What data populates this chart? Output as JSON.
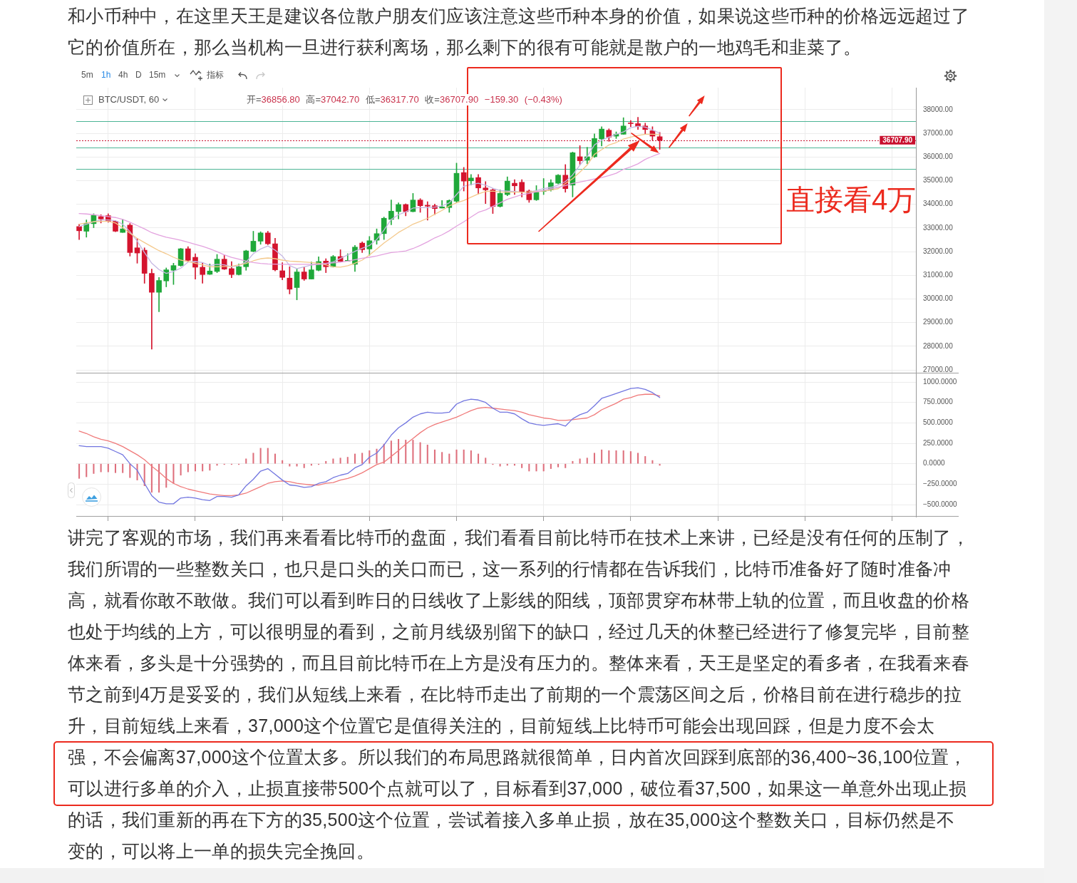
{
  "chart_data": [
    {
      "type": "other",
      "annotations": [
        "和小币种中，在这里天王是建议各位散户朋友们应该注意这些币种本身的价值，如果说这些币种的价格远远超过了",
        "它的价值所在，那么当机构一旦进行获利离场，那么剩下的很有可能就是散户的一地鸡毛和韭菜了。"
      ]
    },
    {
      "type": "candlestick",
      "title": "BTC/USDT, 60",
      "subtitle": "开=36856.80 高=37042.70 低=36317.70 收=36707.90 −159.30 (−0.43%)",
      "categories": [
        null,
        null,
        null,
        null,
        null,
        null,
        null,
        null,
        null,
        null,
        null,
        null,
        null,
        null,
        null,
        null,
        null,
        null,
        null,
        null,
        null,
        null,
        null,
        null,
        null,
        null,
        null,
        null,
        null,
        null,
        null,
        null,
        null,
        null,
        null,
        null,
        null,
        null,
        null,
        null,
        null,
        null,
        null,
        null,
        null,
        null,
        null,
        null,
        null,
        null,
        null,
        null,
        null,
        null,
        null,
        null,
        null,
        null,
        null,
        null,
        null,
        null,
        null,
        null,
        null,
        null,
        null,
        null,
        null,
        null,
        null,
        null,
        null,
        null,
        null,
        null,
        null,
        null,
        null,
        null,
        null
      ],
      "ohlc": [
        [
          33060,
          33160,
          32510,
          32880
        ],
        [
          32860,
          33340,
          32610,
          33190
        ],
        [
          33180,
          33600,
          33010,
          33530
        ],
        [
          33480,
          33560,
          33210,
          33380
        ],
        [
          33520,
          33600,
          33240,
          33280
        ],
        [
          33280,
          33320,
          32840,
          32860
        ],
        [
          32810,
          33360,
          32810,
          32960
        ],
        [
          33120,
          33190,
          31810,
          31960
        ],
        [
          32160,
          32560,
          31510,
          31940
        ],
        [
          32060,
          32160,
          30660,
          31080
        ],
        [
          31080,
          31260,
          27880,
          30280
        ],
        [
          30280,
          30910,
          29460,
          30780
        ],
        [
          30760,
          31310,
          30510,
          31230
        ],
        [
          31210,
          31510,
          30610,
          31410
        ],
        [
          31410,
          32140,
          31380,
          32120
        ],
        [
          32120,
          32210,
          31560,
          31630
        ],
        [
          31760,
          31910,
          30840,
          31340
        ],
        [
          31340,
          31510,
          30660,
          31030
        ],
        [
          31040,
          31480,
          31030,
          31180
        ],
        [
          31160,
          31880,
          31110,
          31680
        ],
        [
          31680,
          31840,
          31240,
          31260
        ],
        [
          31280,
          31580,
          30900,
          31030
        ],
        [
          31030,
          31480,
          31010,
          31360
        ],
        [
          31360,
          32060,
          31210,
          32030
        ],
        [
          32010,
          32860,
          31990,
          32440
        ],
        [
          32440,
          32840,
          32310,
          32790
        ],
        [
          32790,
          32860,
          32290,
          32330
        ],
        [
          32330,
          32560,
          31180,
          31230
        ],
        [
          31190,
          31530,
          30810,
          30910
        ],
        [
          30880,
          31360,
          30210,
          30410
        ],
        [
          30480,
          31260,
          29960,
          31140
        ],
        [
          31140,
          31340,
          30780,
          30840
        ],
        [
          30840,
          31560,
          30840,
          31230
        ],
        [
          31210,
          31780,
          31180,
          31580
        ],
        [
          31600,
          31700,
          31110,
          31360
        ],
        [
          31360,
          31840,
          31340,
          31790
        ],
        [
          31790,
          32080,
          31580,
          31590
        ],
        [
          31600,
          31910,
          31600,
          31630
        ],
        [
          31460,
          32260,
          31160,
          32190
        ],
        [
          32360,
          32410,
          31960,
          32080
        ],
        [
          32110,
          32640,
          31840,
          32460
        ],
        [
          32480,
          32960,
          32310,
          32760
        ],
        [
          32760,
          33460,
          32510,
          33410
        ],
        [
          33360,
          34180,
          33130,
          33710
        ],
        [
          33690,
          34060,
          33380,
          33990
        ],
        [
          33990,
          34020,
          33510,
          33690
        ],
        [
          33690,
          34460,
          33680,
          34180
        ],
        [
          34180,
          34240,
          33660,
          33940
        ],
        [
          33960,
          34110,
          33330,
          33920
        ],
        [
          33940,
          34010,
          33560,
          33820
        ],
        [
          33840,
          34160,
          33840,
          33890
        ],
        [
          33860,
          34190,
          33660,
          34160
        ],
        [
          34130,
          35740,
          34060,
          35310
        ],
        [
          35340,
          35560,
          34560,
          34980
        ],
        [
          34990,
          35260,
          34810,
          35110
        ],
        [
          35130,
          35260,
          34440,
          34690
        ],
        [
          34690,
          34960,
          34030,
          34610
        ],
        [
          34610,
          34660,
          33610,
          33910
        ],
        [
          33910,
          34610,
          33880,
          34460
        ],
        [
          34410,
          35160,
          34360,
          34980
        ],
        [
          34890,
          35040,
          34410,
          34780
        ],
        [
          34930,
          35040,
          34310,
          34510
        ],
        [
          34560,
          34610,
          34080,
          34190
        ],
        [
          34190,
          34790,
          34160,
          34510
        ],
        [
          34540,
          35090,
          34410,
          34580
        ],
        [
          34610,
          35040,
          34560,
          34910
        ],
        [
          34890,
          35260,
          34860,
          35230
        ],
        [
          35230,
          35680,
          34510,
          34660
        ],
        [
          34810,
          36210,
          34310,
          36180
        ],
        [
          36010,
          36480,
          35680,
          35840
        ],
        [
          35860,
          36410,
          35710,
          36010
        ],
        [
          36010,
          36980,
          35980,
          36780
        ],
        [
          36760,
          37280,
          36460,
          37180
        ],
        [
          37130,
          37190,
          36660,
          36840
        ],
        [
          36880,
          37060,
          36780,
          36960
        ],
        [
          36960,
          37660,
          36960,
          37310
        ],
        [
          37440,
          37540,
          37280,
          37410
        ],
        [
          37410,
          37680,
          37160,
          37280
        ],
        [
          37310,
          37430,
          36960,
          37160
        ],
        [
          37110,
          37280,
          36710,
          36880
        ],
        [
          36856.8,
          37042.7,
          36317.7,
          36707.9
        ]
      ],
      "series": [
        {
          "type": "line",
          "color": "#e3a2df",
          "values": [
            33610,
            33590,
            33560,
            33520,
            33480,
            33440,
            33360,
            33240,
            33100,
            32960,
            32800,
            32700,
            32610,
            32550,
            32480,
            32400,
            32310,
            32220,
            32120,
            32000,
            31860,
            31760,
            31680,
            31600,
            31540,
            31500,
            31480,
            31470,
            31460,
            31460,
            31460,
            31460,
            31460,
            31460,
            31490,
            31520,
            31550,
            31600,
            31660,
            31720,
            31760,
            31820,
            31890,
            31960,
            31990,
            32030,
            32130,
            32260,
            32410,
            32580,
            32710,
            32880,
            33080,
            33260,
            33460,
            33660,
            33760,
            33910,
            34060,
            34210,
            34310,
            34410,
            34460,
            34530,
            34590,
            34660,
            34720,
            34790,
            34880,
            34940,
            35000,
            35070,
            35130,
            35210,
            35310,
            35480,
            35580,
            35710,
            35900,
            36030,
            36150
          ]
        },
        {
          "type": "line",
          "color": "#f4c98c",
          "values": [
            33160,
            33220,
            33260,
            33280,
            33280,
            33210,
            33010,
            32780,
            32560,
            32380,
            32210,
            32040,
            31910,
            31760,
            31640,
            31580,
            31510,
            31440,
            31360,
            31360,
            31370,
            31380,
            31440,
            31500,
            31610,
            31700,
            31730,
            31700,
            31640,
            31600,
            31580,
            31560,
            31540,
            31510,
            31440,
            31360,
            31340,
            31400,
            31510,
            31640,
            31860,
            32110,
            32360,
            32580,
            32810,
            32980,
            33160,
            33280,
            33410,
            33580,
            33740,
            33930,
            34060,
            34160,
            34300,
            34440,
            34540,
            34560,
            34520,
            34510,
            34510,
            34510,
            34520,
            34540,
            34560,
            34600,
            34660,
            34880,
            35080,
            35360,
            35660,
            36110,
            36310,
            36510,
            36610,
            36760,
            36840,
            36910,
            36960,
            36960,
            36940
          ]
        },
        {
          "type": "line",
          "color": "#c6b8e3",
          "values": [
            33060,
            33160,
            33260,
            33340,
            33340,
            33310,
            33160,
            32840,
            32440,
            31960,
            31510,
            31240,
            31080,
            31160,
            31300,
            31560,
            31580,
            31540,
            31410,
            31460,
            31440,
            31360,
            31410,
            31560,
            31910,
            32110,
            32240,
            32060,
            31810,
            31410,
            31280,
            31360,
            31430,
            31460,
            31500,
            31560,
            31710,
            31860,
            32010,
            32140,
            32260,
            32510,
            32910,
            33360,
            33560,
            33680,
            33840,
            33860,
            33860,
            33880,
            33930,
            34060,
            34410,
            34760,
            34840,
            34890,
            34810,
            34680,
            34580,
            34560,
            34540,
            34510,
            34520,
            34580,
            34660,
            34720,
            34810,
            34960,
            35240,
            35660,
            36010,
            36510,
            36710,
            36840,
            36960,
            37060,
            37240,
            37300,
            37260,
            37140,
            37010
          ]
        }
      ],
      "ylim": [
        26850,
        38930
      ],
      "yticks": [
        {
          "value": 27000,
          "label": "27000.00"
        },
        {
          "value": 28000,
          "label": "28000.00"
        },
        {
          "value": 29000,
          "label": "29000.00"
        },
        {
          "value": 30000,
          "label": "30000.00"
        },
        {
          "value": 31000,
          "label": "31000.00"
        },
        {
          "value": 32000,
          "label": "32000.00"
        },
        {
          "value": 33000,
          "label": "33000.00"
        },
        {
          "value": 34000,
          "label": "34000.00"
        },
        {
          "value": 35000,
          "label": "35000.00"
        },
        {
          "value": 36000,
          "label": "36000.00"
        },
        {
          "value": 37000,
          "label": "37000.00"
        },
        {
          "value": 38000,
          "label": "38000.00"
        }
      ],
      "ref_lines": [
        {
          "axis": "y",
          "value": 37500,
          "color": "#4db596"
        },
        {
          "axis": "y",
          "value": 36707.9,
          "label": "36707.90",
          "color": "#c8102e",
          "line_style": "dotted"
        },
        {
          "axis": "y",
          "value": 36400,
          "color": "#4db596"
        },
        {
          "axis": "y",
          "value": 35500,
          "color": "#4db596"
        }
      ],
      "grid": true,
      "annotations": [
        "5m",
        "1h",
        "4h",
        "D",
        "15m",
        "指标",
        "直接看4万"
      ]
    },
    {
      "type": "line",
      "categories": [
        null,
        null,
        null,
        null,
        null,
        null,
        null,
        null,
        null,
        null,
        null,
        null,
        null,
        null,
        null,
        null,
        null,
        null,
        null,
        null,
        null,
        null,
        null,
        null,
        null,
        null,
        null,
        null,
        null,
        null,
        null,
        null,
        null,
        null,
        null,
        null,
        null,
        null,
        null,
        null,
        null,
        null,
        null,
        null,
        null,
        null,
        null,
        null,
        null,
        null,
        null,
        null,
        null,
        null,
        null,
        null,
        null,
        null,
        null,
        null,
        null,
        null,
        null,
        null,
        null,
        null,
        null,
        null,
        null,
        null,
        null,
        null,
        null,
        null,
        null,
        null,
        null,
        null,
        null,
        null,
        null
      ],
      "series": [
        {
          "type": "bar",
          "color": "#de6f7c",
          "values": [
            -180,
            -160,
            -120,
            -100,
            -100,
            -110,
            -110,
            -170,
            -200,
            -270,
            -350,
            -350,
            -290,
            -240,
            -140,
            -100,
            -90,
            -90,
            -80,
            -20,
            -10,
            -10,
            -10,
            60,
            130,
            190,
            190,
            120,
            40,
            -30,
            -30,
            -50,
            -20,
            -10,
            30,
            60,
            70,
            80,
            120,
            130,
            160,
            180,
            240,
            280,
            300,
            290,
            290,
            260,
            230,
            170,
            140,
            120,
            170,
            170,
            160,
            120,
            70,
            -10,
            -30,
            -20,
            -20,
            -50,
            -90,
            -90,
            -90,
            -60,
            -40,
            -50,
            30,
            60,
            70,
            130,
            170,
            160,
            160,
            160,
            150,
            130,
            90,
            40,
            -20
          ]
        },
        {
          "type": "line",
          "color": "#7276e0",
          "values": [
            220,
            210,
            210,
            210,
            190,
            150,
            110,
            0,
            -80,
            -240,
            -390,
            -470,
            -490,
            -490,
            -420,
            -410,
            -420,
            -440,
            -450,
            -400,
            -400,
            -410,
            -380,
            -270,
            -190,
            -90,
            -60,
            -130,
            -200,
            -260,
            -270,
            -290,
            -280,
            -240,
            -220,
            -170,
            -140,
            -120,
            -50,
            -10,
            80,
            130,
            230,
            350,
            440,
            500,
            570,
            610,
            630,
            620,
            620,
            630,
            730,
            770,
            790,
            780,
            750,
            680,
            630,
            630,
            610,
            550,
            500,
            480,
            470,
            480,
            490,
            460,
            550,
            600,
            630,
            710,
            800,
            830,
            860,
            890,
            920,
            930,
            910,
            870,
            810
          ]
        },
        {
          "type": "line",
          "color": "#f07a7a",
          "values": [
            400,
            370,
            330,
            300,
            280,
            250,
            210,
            160,
            110,
            50,
            -30,
            -100,
            -180,
            -240,
            -280,
            -310,
            -330,
            -350,
            -370,
            -380,
            -390,
            -390,
            -380,
            -360,
            -320,
            -280,
            -240,
            -220,
            -210,
            -220,
            -240,
            -250,
            -260,
            -260,
            -240,
            -230,
            -200,
            -180,
            -150,
            -110,
            -60,
            -10,
            20,
            90,
            160,
            240,
            310,
            380,
            440,
            480,
            510,
            540,
            570,
            610,
            650,
            680,
            690,
            680,
            670,
            660,
            650,
            630,
            600,
            580,
            560,
            550,
            530,
            530,
            540,
            550,
            560,
            600,
            660,
            700,
            740,
            790,
            810,
            840,
            850,
            850,
            830
          ]
        }
      ],
      "ylim": [
        -648,
        1105
      ],
      "yticks": [
        {
          "value": -500,
          "label": "−500.0000"
        },
        {
          "value": -250,
          "label": "−250.0000"
        },
        {
          "value": 0,
          "label": "0.0000"
        },
        {
          "value": 250,
          "label": "250.0000"
        },
        {
          "value": 500,
          "label": "500.0000"
        },
        {
          "value": 750,
          "label": "750.0000"
        },
        {
          "value": 1000,
          "label": "1000.0000"
        }
      ],
      "grid": true
    },
    {
      "type": "other",
      "annotations": [
        "讲完了客观的市场，我们再来看看比特币的盘面，我们看看目前比特币在技术上来讲，已经是没有任何的压制了，",
        "我们所谓的一些整数关口，也只是口头的关口而已，这一系列的行情都在告诉我们，比特币准备好了随时准备冲",
        "高，就看你敢不敢做。我们可以看到昨日的日线收了上影线的阳线，顶部贯穿布林带上轨的位置，而且收盘的价格",
        "也处于均线的上方，可以很明显的看到，之前月线级别留下的缺口，经过几天的休整已经进行了修复完毕，目前整",
        "体来看，多头是十分强势的，而且目前比特币在上方是没有压力的。整体来看，天王是坚定的看多者，在我看来春",
        "节之前到4万是妥妥的，我们从短线上来看，在比特币走出了前期的一个震荡区间之后，价格目前在进行稳步的拉",
        "升，目前短线上来看，37,000这个位置它是值得关注的，目前短线上比特币可能会出现回踩，但是力度不会太",
        "强，不会偏离37,000这个位置太多。所以我们的布局思路就很简单，日内首次回踩到底部的36,400~36,100位置，",
        "可以进行多单的介入，止损直接带500个点就可以了，目标看到37,000，破位看37,500，如果这一单意外出现止损",
        "的话，我们重新的再在下方的35,500这个位置，尝试着接入多单止损，放在35,000这个整数关口，目标仍然是不",
        "变的，可以将上一单的损失完全挽回。"
      ]
    }
  ]
}
